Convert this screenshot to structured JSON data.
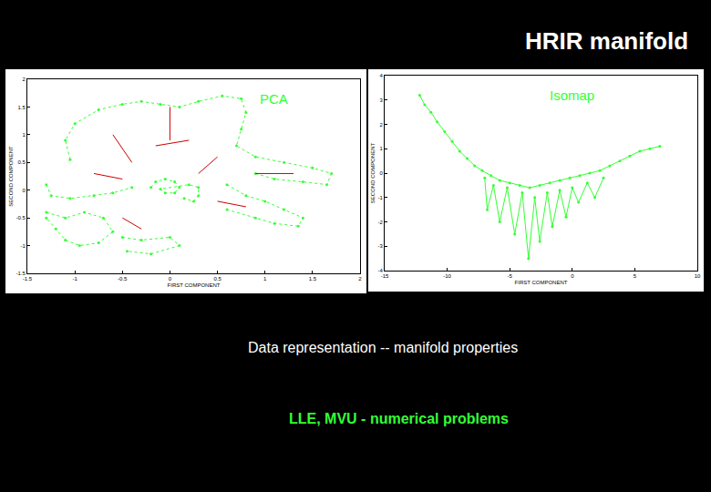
{
  "slide": {
    "title": "HRIR manifold",
    "text": [
      {
        "text": "Data representation -- manifold properties",
        "color": "#ffffff"
      },
      {
        "text": "LLE, MVU - numerical problems",
        "color": "#33ff33"
      }
    ]
  },
  "chart_data": [
    {
      "type": "scatter",
      "title": "PCA",
      "xlabel": "FIRST COMPONENT",
      "ylabel": "SECOND COMPONENT",
      "xlim": [
        -1.5,
        2
      ],
      "xticks": [
        -1.5,
        -1,
        -0.5,
        0,
        0.5,
        1,
        1.5,
        2
      ],
      "ylim": [
        -1.5,
        2
      ],
      "yticks": [
        -1.5,
        -1,
        -0.5,
        0,
        0.5,
        1,
        1.5,
        2
      ],
      "grid": false,
      "series": [
        {
          "color": "#33ff33",
          "marker": "circle",
          "line_style": "dotted",
          "x": [
            -1.05,
            -1.1,
            -1.0,
            -0.75,
            -0.5,
            -0.3,
            -0.1,
            0.1,
            0.3,
            0.55,
            0.75,
            0.8,
            0.75,
            0.7,
            0.9,
            1.2,
            1.5,
            1.7,
            1.65,
            1.4,
            1.1,
            0.9,
            null,
            0.6,
            0.8,
            1.0,
            1.2,
            1.4,
            1.35,
            1.1,
            0.9,
            0.6,
            null,
            -1.3,
            -1.25,
            -1.05,
            -0.8,
            -0.6,
            -0.4,
            null,
            -1.3,
            -1.1,
            -0.9,
            -0.7,
            -0.6,
            -0.75,
            -0.95,
            -1.1,
            -1.2,
            -1.3,
            null,
            -0.5,
            -0.3,
            0.0,
            0.1,
            -0.2,
            -0.45,
            null,
            -0.2,
            -0.15,
            -0.05,
            0.05,
            0.1,
            0.05,
            -0.05,
            -0.1,
            0.2,
            0.3,
            0.3,
            0.25,
            0.15
          ],
          "y": [
            0.55,
            0.9,
            1.2,
            1.45,
            1.55,
            1.6,
            1.55,
            1.5,
            1.6,
            1.7,
            1.65,
            1.4,
            1.1,
            0.8,
            0.6,
            0.5,
            0.4,
            0.3,
            0.1,
            0.15,
            0.2,
            0.3,
            null,
            0.1,
            -0.1,
            -0.2,
            -0.35,
            -0.5,
            -0.65,
            -0.6,
            -0.5,
            -0.35,
            null,
            0.1,
            -0.1,
            -0.15,
            -0.1,
            -0.05,
            0.05,
            null,
            -0.4,
            -0.5,
            -0.4,
            -0.5,
            -0.75,
            -0.95,
            -1.0,
            -0.9,
            -0.7,
            -0.5,
            null,
            -0.85,
            -0.9,
            -0.85,
            -1.0,
            -1.15,
            -1.1,
            null,
            0.05,
            0.15,
            0.2,
            0.15,
            0.05,
            -0.05,
            -0.05,
            0.02,
            0.1,
            0.05,
            -0.1,
            -0.2,
            -0.15
          ]
        },
        {
          "color": "#cc0000",
          "marker": "none",
          "line_style": "solid",
          "x": [
            -0.6,
            -0.4,
            null,
            0.5,
            0.3,
            null,
            -0.8,
            -0.5,
            null,
            0.8,
            0.5,
            null,
            -0.5,
            -0.3,
            null,
            0.0,
            0.0,
            null,
            -0.15,
            0.2,
            null,
            0.9,
            1.3
          ],
          "y": [
            1.0,
            0.5,
            null,
            0.6,
            0.3,
            null,
            0.3,
            0.2,
            null,
            -0.3,
            -0.2,
            null,
            -0.5,
            -0.7,
            null,
            1.5,
            0.9,
            null,
            0.8,
            0.9,
            null,
            0.3,
            0.3
          ]
        }
      ]
    },
    {
      "type": "scatter",
      "title": "Isomap",
      "xlabel": "FIRST COMPONENT",
      "ylabel": "SECOND COMPONENT",
      "xlim": [
        -15,
        10
      ],
      "xticks": [
        -15,
        -10,
        -5,
        0,
        5,
        10
      ],
      "ylim": [
        -4,
        4
      ],
      "yticks": [
        -4,
        -3,
        -2,
        -1,
        0,
        1,
        2,
        3,
        4
      ],
      "grid": false,
      "series": [
        {
          "color": "#33ff33",
          "marker": "circle",
          "line_style": "solid",
          "x": [
            -12.2,
            -11.8,
            -11.3,
            -10.8,
            -10.2,
            -9.6,
            -9.0,
            -8.4,
            -7.8,
            -7.2,
            -6.5,
            -5.8,
            -5.0,
            -4.2,
            -3.4,
            -2.6,
            -1.8,
            -1.0,
            -0.2,
            0.6,
            1.4,
            2.2,
            3.0,
            3.8,
            4.6,
            5.4,
            6.2,
            7.0,
            null,
            -7.0,
            -6.8,
            -6.3,
            -5.8,
            -5.2,
            -4.6,
            -4.0,
            -3.5,
            -3.0,
            -2.6,
            -2.0,
            -1.6,
            -1.0,
            -0.5,
            0.0,
            0.5,
            1.2,
            1.8,
            2.5
          ],
          "y": [
            3.2,
            2.8,
            2.5,
            2.1,
            1.7,
            1.3,
            0.9,
            0.6,
            0.3,
            0.1,
            -0.1,
            -0.3,
            -0.4,
            -0.5,
            -0.6,
            -0.5,
            -0.4,
            -0.3,
            -0.2,
            -0.1,
            0.0,
            0.1,
            0.3,
            0.5,
            0.7,
            0.9,
            1.0,
            1.1,
            null,
            -0.2,
            -1.5,
            -0.5,
            -2.0,
            -0.6,
            -2.5,
            -0.8,
            -3.5,
            -1.0,
            -2.8,
            -0.8,
            -2.2,
            -0.7,
            -1.8,
            -0.6,
            -1.2,
            -0.4,
            -1.0,
            -0.2
          ]
        }
      ]
    }
  ]
}
